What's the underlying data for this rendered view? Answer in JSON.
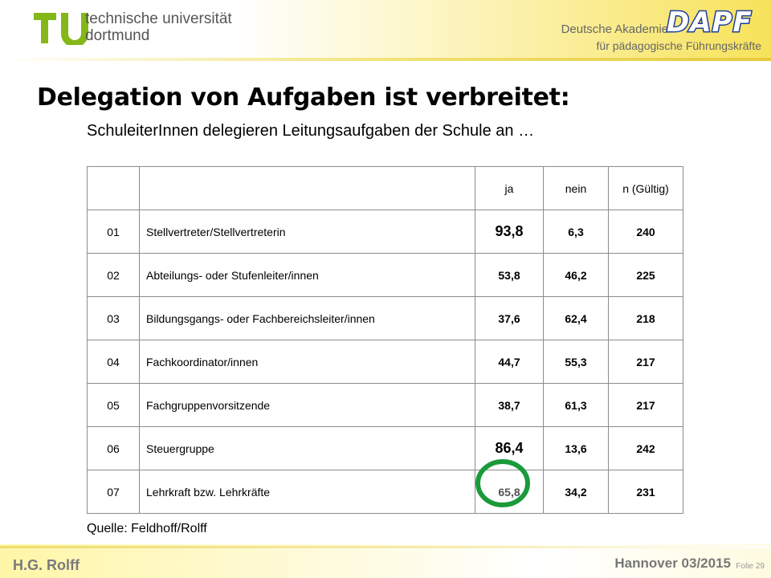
{
  "header": {
    "university_line1": "technische universität",
    "university_line2": "dortmund",
    "academy_line1": "Deutsche Akademie",
    "academy_line2": "für pädagogische Führungskräfte",
    "academy_logo_text": "DAPF"
  },
  "title": "Delegation von Aufgaben ist verbreitet:",
  "subtitle": "SchuleiterInnen delegieren Leitungsaufgaben der Schule an …",
  "table": {
    "headers": [
      "",
      "",
      "ja",
      "nein",
      "n (Gültig)"
    ],
    "rows": [
      {
        "num": "01",
        "label": "Stellvertreter/Stellvertreterin",
        "ja": "93,8",
        "nein": "6,3",
        "n": "240"
      },
      {
        "num": "02",
        "label": "Abteilungs- oder Stufenleiter/innen",
        "ja": "53,8",
        "nein": "46,2",
        "n": "225"
      },
      {
        "num": "03",
        "label": "Bildungsgangs- oder Fachbereichsleiter/innen",
        "ja": "37,6",
        "nein": "62,4",
        "n": "218"
      },
      {
        "num": "04",
        "label": "Fachkoordinator/innen",
        "ja": "44,7",
        "nein": "55,3",
        "n": "217"
      },
      {
        "num": "05",
        "label": "Fachgruppenvorsitzende",
        "ja": "38,7",
        "nein": "61,3",
        "n": "217"
      },
      {
        "num": "06",
        "label": "Steuergruppe",
        "ja": "86,4",
        "nein": "13,6",
        "n": "242"
      },
      {
        "num": "07",
        "label": "Lehrkraft bzw. Lehrkräfte",
        "ja": "65,8",
        "nein": "34,2",
        "n": "231"
      }
    ]
  },
  "source": "Quelle: Feldhoff/Rolff",
  "footer": {
    "author": "H.G. Rolff",
    "location_date": "Hannover 03/2015",
    "slide_number": "Folie 29"
  },
  "colors": {
    "tu_green": "#84b819",
    "dapf_blue": "#1f3e9c",
    "highlight_ring": "#1a9a3a"
  }
}
